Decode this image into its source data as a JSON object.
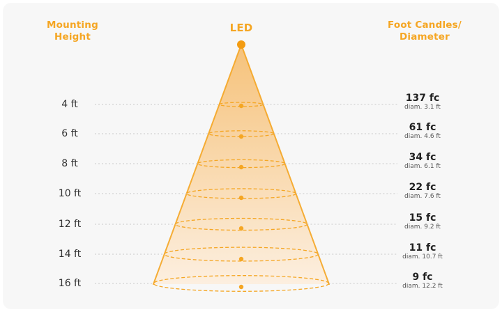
{
  "headers": {
    "mounting_height": [
      "Mounting",
      "Height"
    ],
    "led": "LED",
    "foot_candles": [
      "Foot Candles/",
      "Diameter"
    ]
  },
  "colors": {
    "accent": "#f5a623",
    "accent_dark": "#f39c12",
    "cone_top": "#f6c27a",
    "cone_bottom": "#fcefe0",
    "card_bg": "#f7f7f7",
    "guide_line": "#c8c8c8"
  },
  "levels": [
    {
      "height": "4 ft",
      "fc": "137 fc",
      "diameter": "diam. 3.1 ft"
    },
    {
      "height": "6 ft",
      "fc": "61 fc",
      "diameter": "diam. 4.6 ft"
    },
    {
      "height": "8 ft",
      "fc": "34 fc",
      "diameter": "diam. 6.1 ft"
    },
    {
      "height": "10 ft",
      "fc": "22 fc",
      "diameter": "diam. 7.6 ft"
    },
    {
      "height": "12 ft",
      "fc": "15 fc",
      "diameter": "diam. 9.2 ft"
    },
    {
      "height": "14 ft",
      "fc": "11 fc",
      "diameter": "diam. 10.7 ft"
    },
    {
      "height": "16 ft",
      "fc": "9 fc",
      "diameter": "diam. 12.2 ft"
    }
  ]
}
